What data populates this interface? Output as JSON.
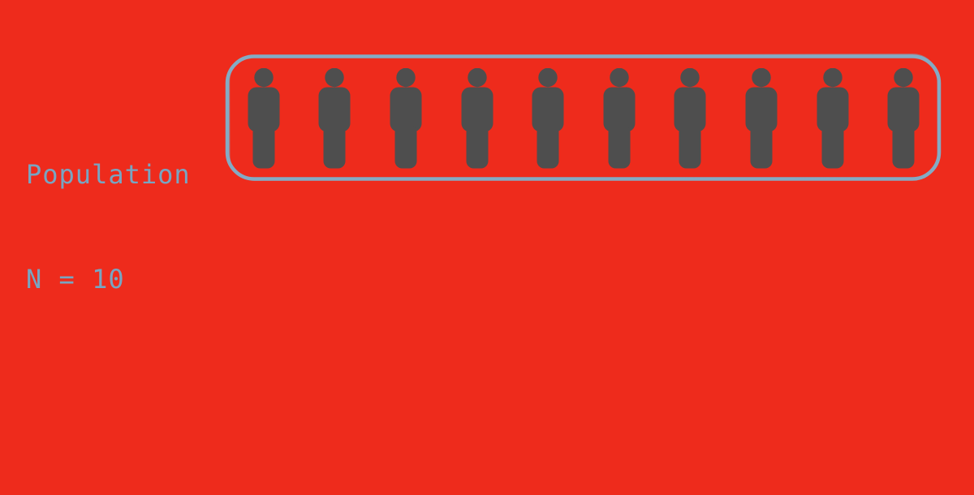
{
  "label": {
    "line1": "Population",
    "line2": "N = 10"
  },
  "population": {
    "count": 10,
    "group_name": "Population",
    "size_label": "N = 10"
  },
  "icons": {
    "person": "person-icon"
  },
  "colors": {
    "background": "#ee2b1c",
    "text": "#78a5c2",
    "frame_border": "#84abc4",
    "person_fill": "#4e4e4e"
  }
}
